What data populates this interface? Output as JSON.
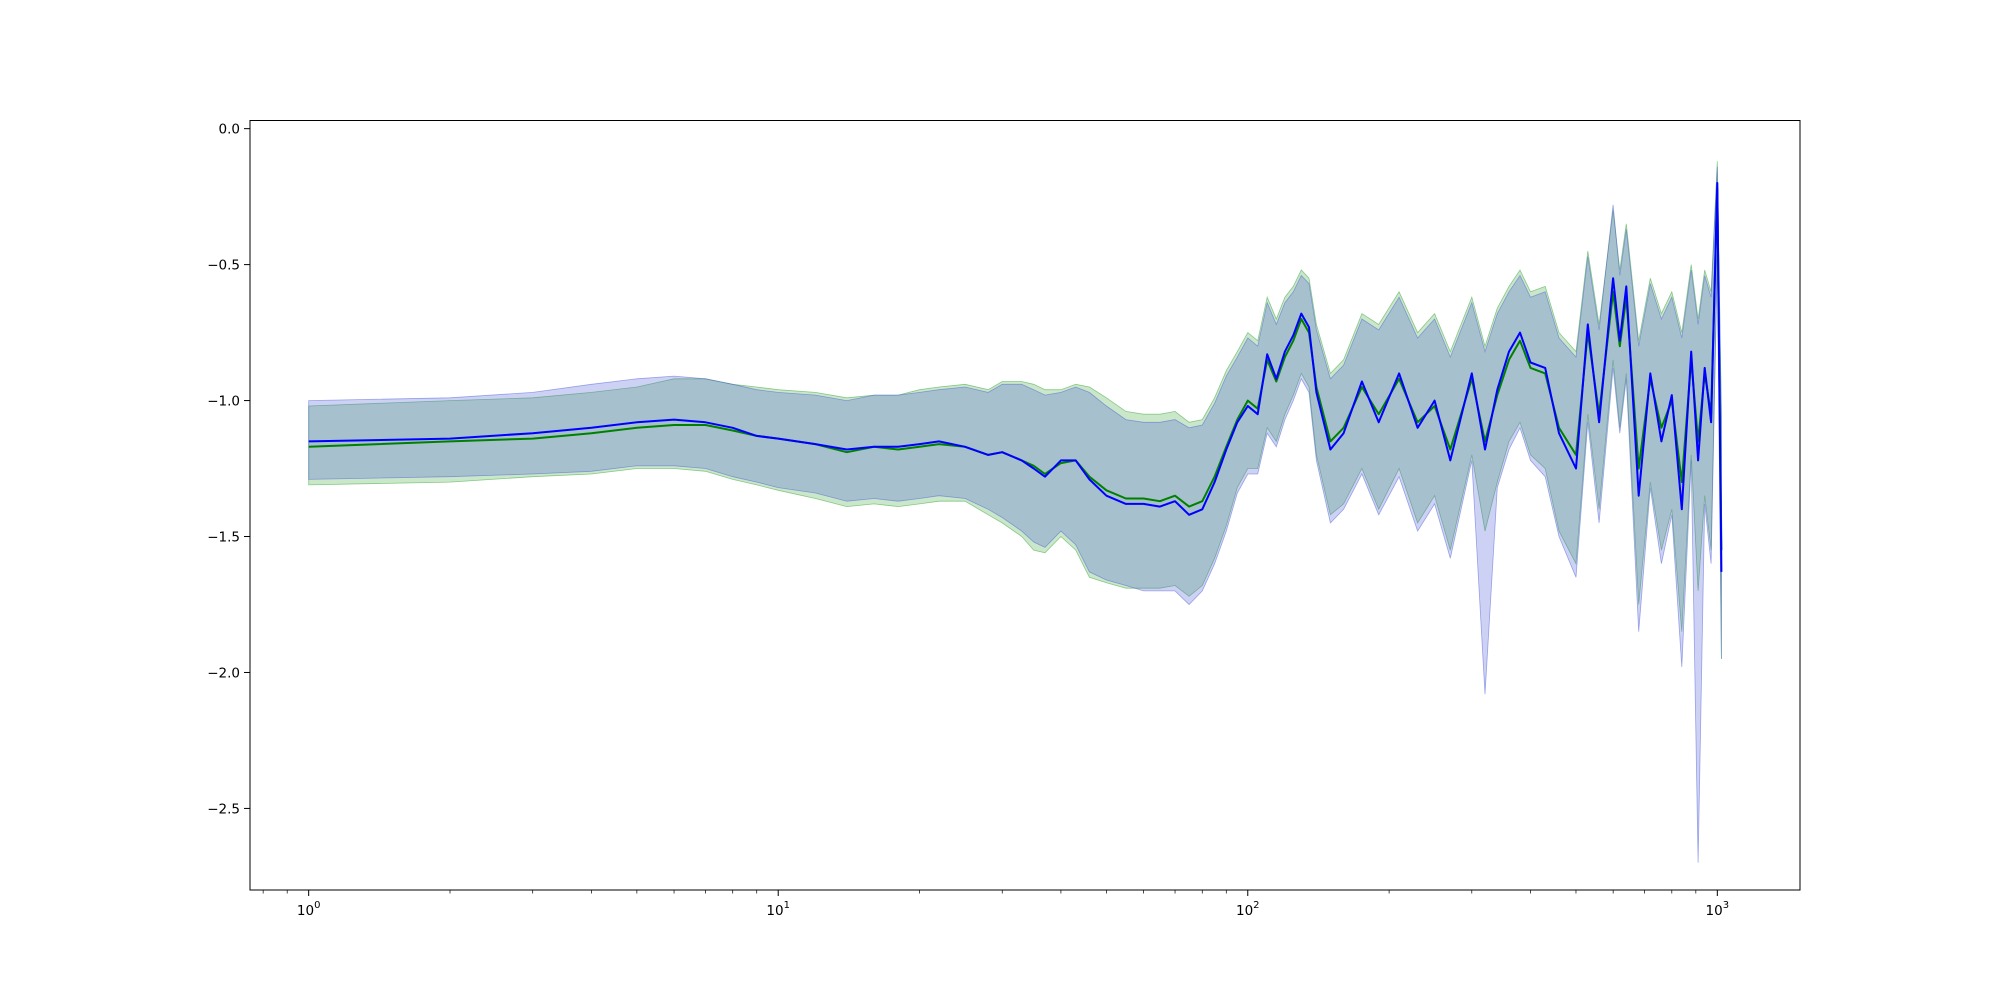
{
  "chart_data": {
    "type": "line",
    "title": "",
    "xlabel": "",
    "ylabel": "",
    "xscale": "log",
    "xlim": [
      0.75,
      1500
    ],
    "ylim": [
      -2.8,
      0.03
    ],
    "grid": false,
    "legend": "none",
    "x_ticks": [
      {
        "value": 1,
        "base": "10",
        "exp": "0"
      },
      {
        "value": 10,
        "base": "10",
        "exp": "1"
      },
      {
        "value": 100,
        "base": "10",
        "exp": "2"
      },
      {
        "value": 1000,
        "base": "10",
        "exp": "3"
      }
    ],
    "y_ticks": [
      {
        "value": 0.0,
        "label": "0.0"
      },
      {
        "value": -0.5,
        "label": "−0.5"
      },
      {
        "value": -1.0,
        "label": "−1.0"
      },
      {
        "value": -1.5,
        "label": "−1.5"
      },
      {
        "value": -2.0,
        "label": "−2.0"
      },
      {
        "value": -2.5,
        "label": "−2.5"
      }
    ],
    "series": [
      {
        "color": "#008000",
        "band_color": "#2ca02c",
        "band_opacity": 0.25,
        "x": [
          1,
          2,
          3,
          4,
          5,
          6,
          7,
          8,
          9,
          10,
          12,
          14,
          16,
          18,
          20,
          22,
          25,
          28,
          30,
          33,
          35,
          37,
          40,
          43,
          46,
          50,
          55,
          60,
          65,
          70,
          75,
          80,
          85,
          90,
          95,
          100,
          105,
          110,
          115,
          120,
          125,
          130,
          135,
          140,
          150,
          160,
          175,
          190,
          210,
          230,
          250,
          270,
          300,
          320,
          340,
          360,
          380,
          400,
          430,
          460,
          500,
          530,
          560,
          600,
          620,
          640,
          680,
          720,
          760,
          800,
          840,
          880,
          910,
          940,
          970,
          1000,
          1020
        ],
        "y": [
          -1.17,
          -1.15,
          -1.14,
          -1.12,
          -1.1,
          -1.09,
          -1.09,
          -1.11,
          -1.13,
          -1.14,
          -1.16,
          -1.19,
          -1.17,
          -1.18,
          -1.17,
          -1.16,
          -1.17,
          -1.2,
          -1.19,
          -1.22,
          -1.24,
          -1.27,
          -1.23,
          -1.22,
          -1.28,
          -1.33,
          -1.36,
          -1.36,
          -1.37,
          -1.35,
          -1.39,
          -1.37,
          -1.28,
          -1.17,
          -1.07,
          -1.0,
          -1.03,
          -0.85,
          -0.93,
          -0.84,
          -0.78,
          -0.7,
          -0.75,
          -0.95,
          -1.15,
          -1.1,
          -0.95,
          -1.05,
          -0.92,
          -1.08,
          -1.02,
          -1.18,
          -0.92,
          -1.15,
          -0.98,
          -0.85,
          -0.78,
          -0.88,
          -0.9,
          -1.1,
          -1.2,
          -0.75,
          -1.05,
          -0.6,
          -0.8,
          -0.62,
          -1.25,
          -0.92,
          -1.1,
          -1.0,
          -1.3,
          -0.85,
          -1.15,
          -0.9,
          -1.05,
          -0.22,
          -1.55
        ],
        "lower": [
          -1.31,
          -1.3,
          -1.28,
          -1.27,
          -1.25,
          -1.25,
          -1.26,
          -1.29,
          -1.31,
          -1.33,
          -1.36,
          -1.39,
          -1.38,
          -1.39,
          -1.38,
          -1.37,
          -1.37,
          -1.42,
          -1.45,
          -1.5,
          -1.55,
          -1.56,
          -1.5,
          -1.55,
          -1.65,
          -1.67,
          -1.69,
          -1.69,
          -1.69,
          -1.68,
          -1.72,
          -1.68,
          -1.58,
          -1.46,
          -1.32,
          -1.25,
          -1.25,
          -1.1,
          -1.15,
          -1.05,
          -0.98,
          -0.9,
          -0.95,
          -1.2,
          -1.42,
          -1.38,
          -1.25,
          -1.4,
          -1.25,
          -1.45,
          -1.35,
          -1.55,
          -1.2,
          -1.48,
          -1.3,
          -1.15,
          -1.08,
          -1.2,
          -1.25,
          -1.48,
          -1.6,
          -1.05,
          -1.4,
          -0.85,
          -1.1,
          -0.9,
          -1.75,
          -1.3,
          -1.55,
          -1.4,
          -1.85,
          -1.2,
          -1.7,
          -1.35,
          -1.55,
          -0.45,
          -1.95
        ],
        "upper": [
          -1.02,
          -1.0,
          -0.99,
          -0.97,
          -0.95,
          -0.92,
          -0.92,
          -0.94,
          -0.95,
          -0.96,
          -0.97,
          -0.99,
          -0.98,
          -0.98,
          -0.96,
          -0.95,
          -0.94,
          -0.96,
          -0.93,
          -0.93,
          -0.94,
          -0.96,
          -0.96,
          -0.94,
          -0.95,
          -0.99,
          -1.04,
          -1.05,
          -1.05,
          -1.04,
          -1.08,
          -1.07,
          -0.99,
          -0.89,
          -0.82,
          -0.75,
          -0.78,
          -0.62,
          -0.7,
          -0.62,
          -0.58,
          -0.52,
          -0.55,
          -0.72,
          -0.9,
          -0.85,
          -0.68,
          -0.72,
          -0.6,
          -0.75,
          -0.68,
          -0.82,
          -0.62,
          -0.8,
          -0.66,
          -0.58,
          -0.52,
          -0.6,
          -0.58,
          -0.75,
          -0.82,
          -0.45,
          -0.72,
          -0.3,
          -0.52,
          -0.35,
          -0.78,
          -0.55,
          -0.68,
          -0.6,
          -0.75,
          -0.5,
          -0.7,
          -0.52,
          -0.6,
          -0.12,
          -1.05
        ]
      },
      {
        "color": "#0000ff",
        "band_color": "#4a5cd8",
        "band_opacity": 0.28,
        "x": [
          1,
          2,
          3,
          4,
          5,
          6,
          7,
          8,
          9,
          10,
          12,
          14,
          16,
          18,
          20,
          22,
          25,
          28,
          30,
          33,
          35,
          37,
          40,
          43,
          46,
          50,
          55,
          60,
          65,
          70,
          75,
          80,
          85,
          90,
          95,
          100,
          105,
          110,
          115,
          120,
          125,
          130,
          135,
          140,
          150,
          160,
          175,
          190,
          210,
          230,
          250,
          270,
          300,
          320,
          340,
          360,
          380,
          400,
          430,
          460,
          500,
          530,
          560,
          600,
          620,
          640,
          680,
          720,
          760,
          800,
          840,
          880,
          910,
          940,
          970,
          1000,
          1020
        ],
        "y": [
          -1.15,
          -1.14,
          -1.12,
          -1.1,
          -1.08,
          -1.07,
          -1.08,
          -1.1,
          -1.13,
          -1.14,
          -1.16,
          -1.18,
          -1.17,
          -1.17,
          -1.16,
          -1.15,
          -1.17,
          -1.2,
          -1.19,
          -1.22,
          -1.25,
          -1.28,
          -1.22,
          -1.22,
          -1.29,
          -1.35,
          -1.38,
          -1.38,
          -1.39,
          -1.37,
          -1.42,
          -1.4,
          -1.3,
          -1.18,
          -1.08,
          -1.02,
          -1.05,
          -0.83,
          -0.92,
          -0.82,
          -0.76,
          -0.68,
          -0.73,
          -0.97,
          -1.18,
          -1.12,
          -0.93,
          -1.08,
          -0.9,
          -1.1,
          -1.0,
          -1.22,
          -0.9,
          -1.18,
          -0.96,
          -0.82,
          -0.75,
          -0.86,
          -0.88,
          -1.12,
          -1.25,
          -0.72,
          -1.08,
          -0.55,
          -0.78,
          -0.58,
          -1.35,
          -0.9,
          -1.15,
          -0.98,
          -1.4,
          -0.82,
          -1.22,
          -0.88,
          -1.08,
          -0.2,
          -1.63
        ],
        "lower": [
          -1.29,
          -1.28,
          -1.27,
          -1.26,
          -1.24,
          -1.24,
          -1.25,
          -1.28,
          -1.3,
          -1.32,
          -1.34,
          -1.37,
          -1.36,
          -1.37,
          -1.36,
          -1.35,
          -1.36,
          -1.4,
          -1.43,
          -1.48,
          -1.52,
          -1.54,
          -1.48,
          -1.53,
          -1.63,
          -1.66,
          -1.68,
          -1.7,
          -1.7,
          -1.7,
          -1.75,
          -1.7,
          -1.6,
          -1.48,
          -1.34,
          -1.27,
          -1.27,
          -1.12,
          -1.17,
          -1.07,
          -1.0,
          -0.92,
          -0.97,
          -1.22,
          -1.45,
          -1.4,
          -1.27,
          -1.42,
          -1.28,
          -1.48,
          -1.38,
          -1.58,
          -1.22,
          -2.08,
          -1.32,
          -1.18,
          -1.1,
          -1.22,
          -1.28,
          -1.5,
          -1.65,
          -1.08,
          -1.45,
          -0.88,
          -1.12,
          -0.92,
          -1.85,
          -1.32,
          -1.6,
          -1.42,
          -1.98,
          -1.22,
          -2.7,
          -1.38,
          -1.6,
          -0.48,
          -1.95
        ],
        "upper": [
          -1.0,
          -0.99,
          -0.97,
          -0.94,
          -0.92,
          -0.91,
          -0.92,
          -0.94,
          -0.96,
          -0.97,
          -0.98,
          -1.0,
          -0.98,
          -0.98,
          -0.97,
          -0.96,
          -0.95,
          -0.97,
          -0.94,
          -0.94,
          -0.96,
          -0.98,
          -0.97,
          -0.95,
          -0.97,
          -1.02,
          -1.07,
          -1.08,
          -1.08,
          -1.07,
          -1.1,
          -1.09,
          -1.01,
          -0.91,
          -0.84,
          -0.77,
          -0.8,
          -0.64,
          -0.72,
          -0.64,
          -0.6,
          -0.54,
          -0.57,
          -0.74,
          -0.92,
          -0.87,
          -0.7,
          -0.74,
          -0.62,
          -0.77,
          -0.7,
          -0.84,
          -0.64,
          -0.82,
          -0.68,
          -0.6,
          -0.54,
          -0.62,
          -0.6,
          -0.77,
          -0.84,
          -0.47,
          -0.74,
          -0.28,
          -0.54,
          -0.37,
          -0.8,
          -0.57,
          -0.7,
          -0.62,
          -0.77,
          -0.52,
          -0.72,
          -0.54,
          -0.62,
          -0.14,
          -1.07
        ]
      }
    ]
  }
}
